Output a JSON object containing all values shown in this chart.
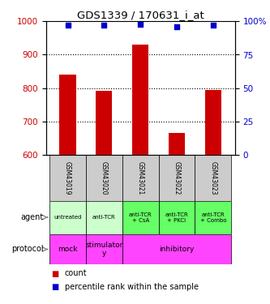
{
  "title": "GDS1339 / 170631_i_at",
  "samples": [
    "GSM43019",
    "GSM43020",
    "GSM43021",
    "GSM43022",
    "GSM43023"
  ],
  "counts": [
    840,
    793,
    930,
    665,
    795
  ],
  "percentiles": [
    97,
    97,
    98,
    96,
    97
  ],
  "ylim_left": [
    600,
    1000
  ],
  "ylim_right": [
    0,
    100
  ],
  "yticks_left": [
    600,
    700,
    800,
    900,
    1000
  ],
  "yticks_right": [
    0,
    25,
    50,
    75,
    100
  ],
  "bar_color": "#cc0000",
  "dot_color": "#0000cc",
  "agent_labels": [
    "untreated",
    "anti-TCR",
    "anti-TCR\n+ CsA",
    "anti-TCR\n+ PKCi",
    "anti-TCR\n+ Combo"
  ],
  "agent_colors": [
    "#ccffcc",
    "#ccffcc",
    "#66ff66",
    "#66ff66",
    "#66ff66"
  ],
  "protocol_defs": [
    {
      "label": "mock",
      "span": [
        0,
        1
      ],
      "color": "#ff44ff"
    },
    {
      "label": "stimulator\ny",
      "span": [
        1,
        2
      ],
      "color": "#ff44ff"
    },
    {
      "label": "inhibitory",
      "span": [
        2,
        5
      ],
      "color": "#ff44ff"
    }
  ],
  "sample_bg_color": "#cccccc",
  "legend_count_color": "#cc0000",
  "legend_pct_color": "#0000cc",
  "bar_width": 0.45
}
